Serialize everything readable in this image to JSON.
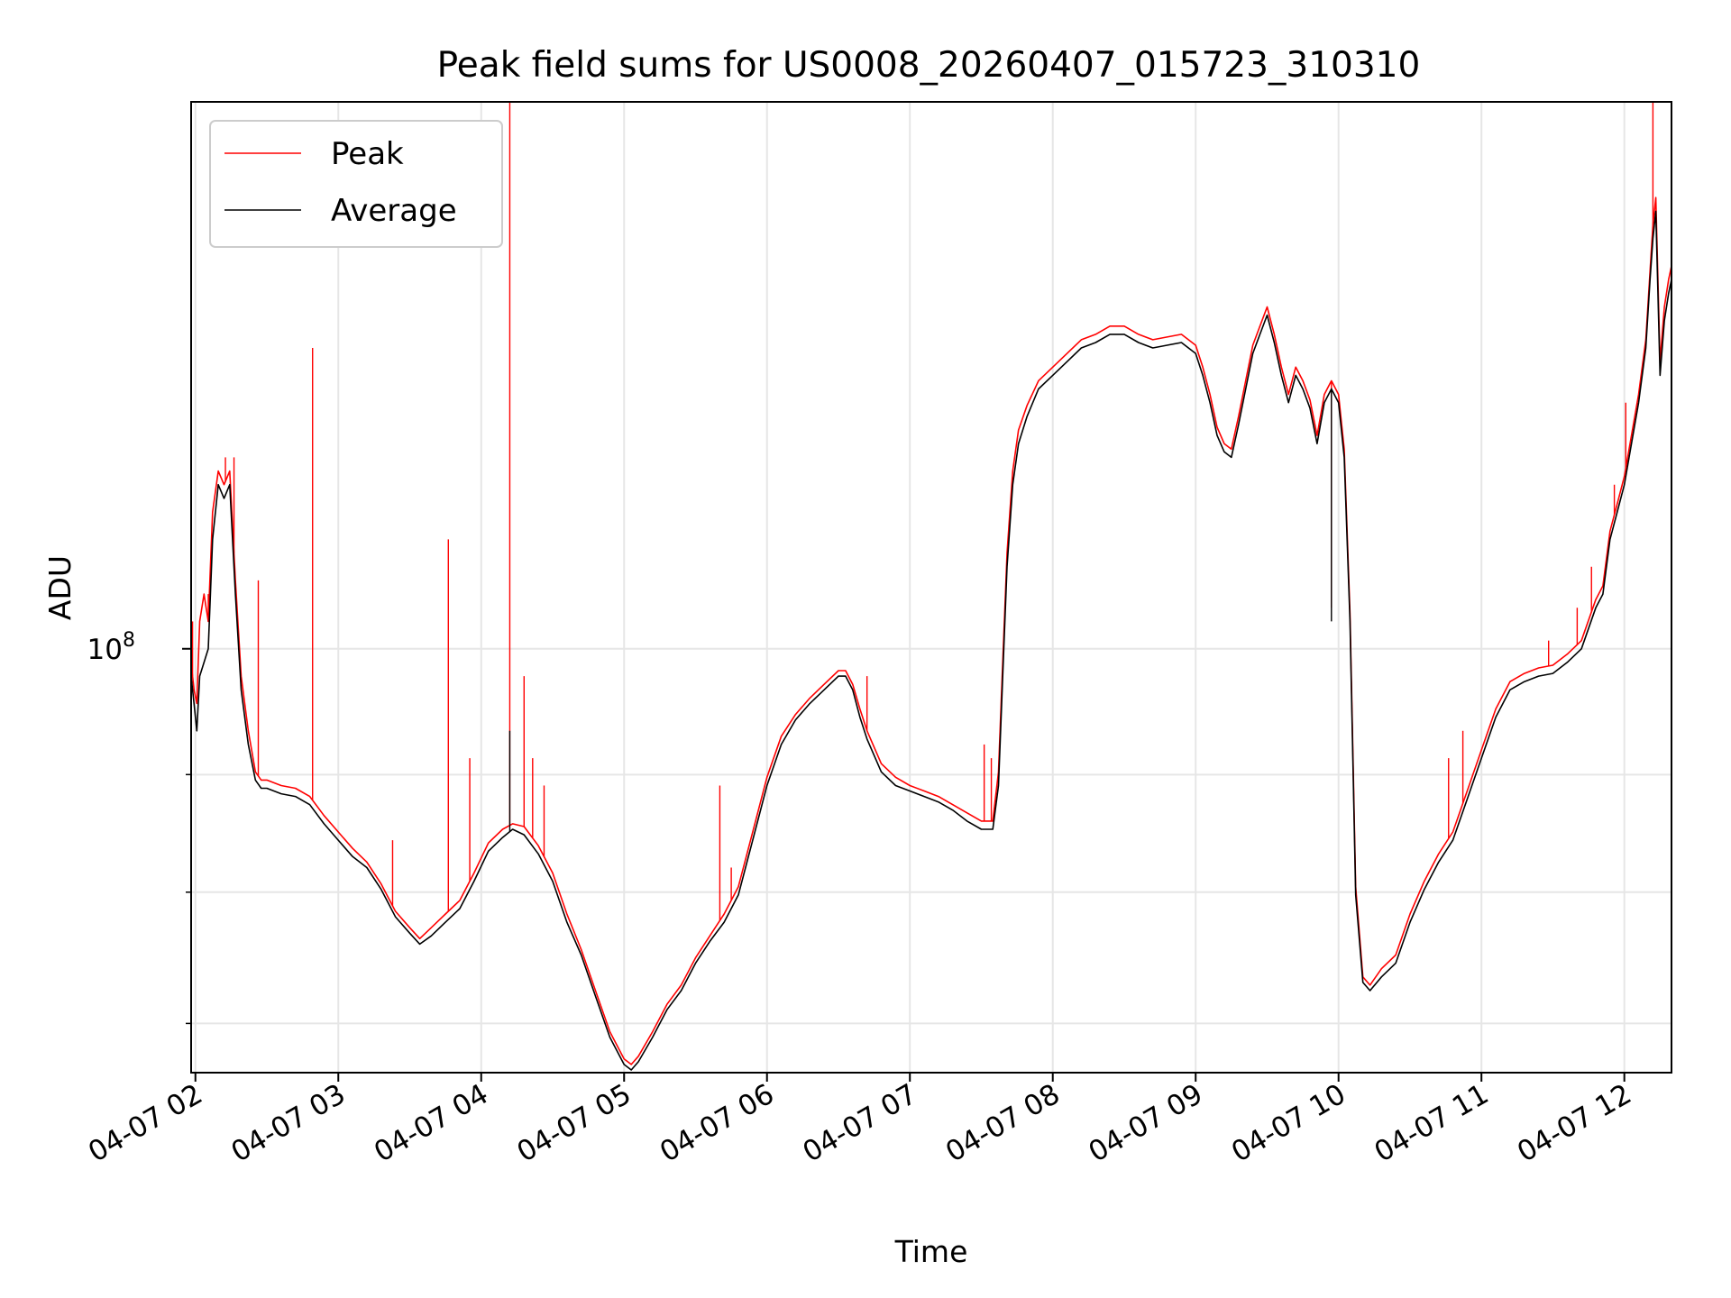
{
  "chart_data": {
    "type": "line",
    "title": "Peak field sums for US0008_20260407_015723_310310",
    "xlabel": "Time",
    "ylabel": "ADU",
    "yscale": "log",
    "grid": true,
    "legend_position": "top-left",
    "xlim": [
      1.97,
      12.33
    ],
    "ylim_log10": [
      7.845,
      8.2
    ],
    "x_ticks": [
      {
        "value": 2,
        "label": "04-07 02"
      },
      {
        "value": 3,
        "label": "04-07 03"
      },
      {
        "value": 4,
        "label": "04-07 04"
      },
      {
        "value": 5,
        "label": "04-07 05"
      },
      {
        "value": 6,
        "label": "04-07 06"
      },
      {
        "value": 7,
        "label": "04-07 07"
      },
      {
        "value": 8,
        "label": "04-07 08"
      },
      {
        "value": 9,
        "label": "04-07 09"
      },
      {
        "value": 10,
        "label": "04-07 10"
      },
      {
        "value": 11,
        "label": "04-07 11"
      },
      {
        "value": 12,
        "label": "04-07 12"
      }
    ],
    "y_major_tick": {
      "log10": 8.0,
      "label_base": "10",
      "label_exp": "8"
    },
    "y_minor_ticks_log10": [
      7.863,
      7.911,
      7.954
    ],
    "series": [
      {
        "name": "Average",
        "color": "#000000",
        "x": [
          1.97,
          1.99,
          2.01,
          2.03,
          2.06,
          2.09,
          2.12,
          2.16,
          2.2,
          2.24,
          2.28,
          2.32,
          2.37,
          2.42,
          2.46,
          2.5,
          2.6,
          2.7,
          2.8,
          2.9,
          3.0,
          3.1,
          3.2,
          3.3,
          3.4,
          3.5,
          3.57,
          3.65,
          3.75,
          3.85,
          3.95,
          4.05,
          4.15,
          4.22,
          4.3,
          4.4,
          4.5,
          4.6,
          4.7,
          4.8,
          4.9,
          5.0,
          5.05,
          5.1,
          5.2,
          5.3,
          5.4,
          5.5,
          5.6,
          5.7,
          5.8,
          5.9,
          6.0,
          6.1,
          6.2,
          6.3,
          6.4,
          6.5,
          6.55,
          6.6,
          6.65,
          6.7,
          6.8,
          6.9,
          7.0,
          7.1,
          7.2,
          7.3,
          7.4,
          7.5,
          7.58,
          7.62,
          7.65,
          7.68,
          7.72,
          7.76,
          7.82,
          7.9,
          8.0,
          8.1,
          8.2,
          8.3,
          8.4,
          8.5,
          8.6,
          8.7,
          8.8,
          8.9,
          9.0,
          9.05,
          9.1,
          9.15,
          9.2,
          9.25,
          9.3,
          9.35,
          9.4,
          9.45,
          9.5,
          9.55,
          9.6,
          9.65,
          9.7,
          9.75,
          9.8,
          9.85,
          9.9,
          9.95,
          10.0,
          10.04,
          10.08,
          10.12,
          10.17,
          10.22,
          10.3,
          10.4,
          10.5,
          10.6,
          10.7,
          10.8,
          10.9,
          11.0,
          11.1,
          11.2,
          11.3,
          11.4,
          11.5,
          11.6,
          11.7,
          11.8,
          11.85,
          11.9,
          11.95,
          12.0,
          12.05,
          12.1,
          12.15,
          12.18,
          12.2,
          12.22,
          12.25,
          12.28,
          12.31,
          12.33
        ],
        "log10_values": [
          7.99,
          7.98,
          7.97,
          7.99,
          7.995,
          8.0,
          8.04,
          8.06,
          8.055,
          8.06,
          8.02,
          7.985,
          7.965,
          7.952,
          7.949,
          7.949,
          7.947,
          7.946,
          7.943,
          7.936,
          7.93,
          7.924,
          7.92,
          7.912,
          7.902,
          7.896,
          7.892,
          7.895,
          7.9,
          7.905,
          7.915,
          7.926,
          7.931,
          7.934,
          7.932,
          7.925,
          7.915,
          7.9,
          7.888,
          7.873,
          7.858,
          7.848,
          7.846,
          7.849,
          7.858,
          7.868,
          7.875,
          7.885,
          7.893,
          7.9,
          7.91,
          7.93,
          7.95,
          7.965,
          7.974,
          7.98,
          7.985,
          7.99,
          7.99,
          7.985,
          7.975,
          7.967,
          7.955,
          7.95,
          7.948,
          7.946,
          7.944,
          7.941,
          7.937,
          7.934,
          7.934,
          7.95,
          7.99,
          8.03,
          8.06,
          8.075,
          8.085,
          8.095,
          8.1,
          8.105,
          8.11,
          8.112,
          8.115,
          8.115,
          8.112,
          8.11,
          8.111,
          8.112,
          8.108,
          8.1,
          8.09,
          8.078,
          8.072,
          8.07,
          8.082,
          8.095,
          8.108,
          8.115,
          8.122,
          8.112,
          8.1,
          8.09,
          8.1,
          8.095,
          8.088,
          8.075,
          8.09,
          8.095,
          8.09,
          8.07,
          8.01,
          7.91,
          7.878,
          7.875,
          7.88,
          7.885,
          7.9,
          7.912,
          7.922,
          7.93,
          7.945,
          7.96,
          7.975,
          7.985,
          7.988,
          7.99,
          7.991,
          7.995,
          8.0,
          8.015,
          8.02,
          8.04,
          8.05,
          8.06,
          8.075,
          8.09,
          8.11,
          8.135,
          8.15,
          8.16,
          8.1,
          8.12,
          8.13,
          8.135
        ],
        "spikes": [
          {
            "x": 4.2,
            "log10": 7.97
          },
          {
            "x": 9.95,
            "log10": 8.01
          }
        ]
      },
      {
        "name": "Peak",
        "color": "#ff0000",
        "x": [
          1.97,
          1.99,
          2.01,
          2.03,
          2.06,
          2.09,
          2.12,
          2.16,
          2.2,
          2.24,
          2.28,
          2.32,
          2.37,
          2.42,
          2.46,
          2.5,
          2.6,
          2.7,
          2.8,
          2.9,
          3.0,
          3.1,
          3.2,
          3.3,
          3.4,
          3.5,
          3.57,
          3.65,
          3.75,
          3.85,
          3.95,
          4.05,
          4.15,
          4.22,
          4.3,
          4.4,
          4.5,
          4.6,
          4.7,
          4.8,
          4.9,
          5.0,
          5.05,
          5.1,
          5.2,
          5.3,
          5.4,
          5.5,
          5.6,
          5.7,
          5.8,
          5.9,
          6.0,
          6.1,
          6.2,
          6.3,
          6.4,
          6.5,
          6.55,
          6.6,
          6.65,
          6.7,
          6.8,
          6.9,
          7.0,
          7.1,
          7.2,
          7.3,
          7.4,
          7.5,
          7.58,
          7.62,
          7.65,
          7.68,
          7.72,
          7.76,
          7.82,
          7.9,
          8.0,
          8.1,
          8.2,
          8.3,
          8.4,
          8.5,
          8.6,
          8.7,
          8.8,
          8.9,
          9.0,
          9.05,
          9.1,
          9.15,
          9.2,
          9.25,
          9.3,
          9.35,
          9.4,
          9.45,
          9.5,
          9.55,
          9.6,
          9.65,
          9.7,
          9.75,
          9.8,
          9.85,
          9.9,
          9.95,
          10.0,
          10.04,
          10.08,
          10.12,
          10.17,
          10.22,
          10.3,
          10.4,
          10.5,
          10.6,
          10.7,
          10.8,
          10.9,
          11.0,
          11.1,
          11.2,
          11.3,
          11.4,
          11.5,
          11.6,
          11.7,
          11.8,
          11.85,
          11.9,
          11.95,
          12.0,
          12.05,
          12.1,
          12.15,
          12.18,
          12.2,
          12.22,
          12.25,
          12.28,
          12.31,
          12.33
        ],
        "log10_values": [
          7.995,
          7.985,
          7.98,
          8.01,
          8.02,
          8.01,
          8.05,
          8.065,
          8.06,
          8.065,
          8.025,
          7.99,
          7.97,
          7.955,
          7.952,
          7.952,
          7.95,
          7.949,
          7.946,
          7.939,
          7.933,
          7.927,
          7.922,
          7.914,
          7.904,
          7.898,
          7.894,
          7.898,
          7.903,
          7.908,
          7.918,
          7.929,
          7.934,
          7.936,
          7.935,
          7.928,
          7.918,
          7.903,
          7.89,
          7.875,
          7.86,
          7.85,
          7.848,
          7.851,
          7.86,
          7.87,
          7.877,
          7.887,
          7.895,
          7.903,
          7.913,
          7.933,
          7.953,
          7.968,
          7.976,
          7.982,
          7.987,
          7.992,
          7.992,
          7.987,
          7.978,
          7.97,
          7.958,
          7.953,
          7.95,
          7.948,
          7.946,
          7.943,
          7.94,
          7.937,
          7.937,
          7.955,
          7.995,
          8.035,
          8.065,
          8.08,
          8.089,
          8.098,
          8.103,
          8.108,
          8.113,
          8.115,
          8.118,
          8.118,
          8.115,
          8.113,
          8.114,
          8.115,
          8.111,
          8.103,
          8.093,
          8.081,
          8.075,
          8.073,
          8.085,
          8.098,
          8.111,
          8.118,
          8.125,
          8.115,
          8.103,
          8.093,
          8.103,
          8.098,
          8.091,
          8.078,
          8.093,
          8.098,
          8.093,
          8.073,
          8.013,
          7.913,
          7.88,
          7.877,
          7.883,
          7.888,
          7.903,
          7.915,
          7.925,
          7.933,
          7.948,
          7.963,
          7.978,
          7.988,
          7.991,
          7.993,
          7.994,
          7.998,
          8.003,
          8.018,
          8.023,
          8.043,
          8.053,
          8.063,
          8.078,
          8.093,
          8.113,
          8.138,
          8.155,
          8.165,
          8.105,
          8.125,
          8.135,
          8.14
        ],
        "spikes": [
          {
            "x": 1.98,
            "log10": 8.01
          },
          {
            "x": 2.09,
            "log10": 8.02
          },
          {
            "x": 2.21,
            "log10": 8.07
          },
          {
            "x": 2.27,
            "log10": 8.07
          },
          {
            "x": 2.44,
            "log10": 8.025
          },
          {
            "x": 2.82,
            "log10": 8.11
          },
          {
            "x": 3.38,
            "log10": 7.93
          },
          {
            "x": 3.77,
            "log10": 8.04
          },
          {
            "x": 3.92,
            "log10": 7.96
          },
          {
            "x": 4.2,
            "log10": 8.2
          },
          {
            "x": 4.3,
            "log10": 7.99
          },
          {
            "x": 4.36,
            "log10": 7.96
          },
          {
            "x": 4.44,
            "log10": 7.95
          },
          {
            "x": 5.67,
            "log10": 7.95
          },
          {
            "x": 5.75,
            "log10": 7.92
          },
          {
            "x": 6.7,
            "log10": 7.99
          },
          {
            "x": 7.52,
            "log10": 7.965
          },
          {
            "x": 7.57,
            "log10": 7.96
          },
          {
            "x": 9.95,
            "log10": 8.015
          },
          {
            "x": 10.77,
            "log10": 7.96
          },
          {
            "x": 10.87,
            "log10": 7.97
          },
          {
            "x": 11.47,
            "log10": 8.003
          },
          {
            "x": 11.67,
            "log10": 8.015
          },
          {
            "x": 11.77,
            "log10": 8.03
          },
          {
            "x": 11.93,
            "log10": 8.06
          },
          {
            "x": 12.01,
            "log10": 8.09
          },
          {
            "x": 12.2,
            "log10": 8.2
          }
        ]
      }
    ],
    "legend": [
      {
        "name": "Peak",
        "color": "#ff0000"
      },
      {
        "name": "Average",
        "color": "#000000"
      }
    ]
  }
}
